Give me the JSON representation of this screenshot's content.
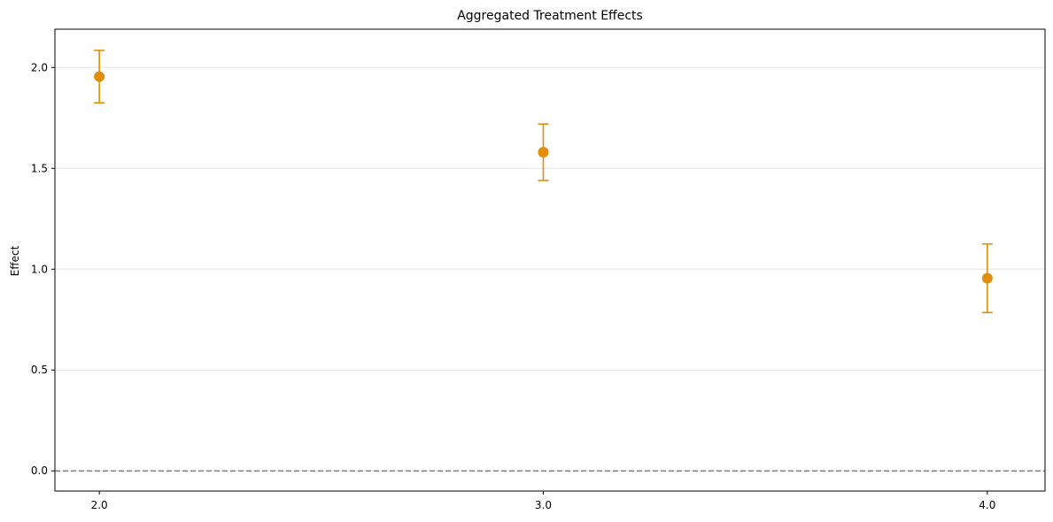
{
  "chart_data": {
    "type": "scatter",
    "title": "Aggregated Treatment Effects",
    "xlabel": "",
    "ylabel": "Effect",
    "x_ticks": [
      "2.0",
      "3.0",
      "4.0"
    ],
    "y_ticks": [
      "0.0",
      "0.5",
      "1.0",
      "1.5",
      "2.0"
    ],
    "xlim": [
      1.9,
      4.13
    ],
    "ylim": [
      -0.1,
      2.19
    ],
    "grid": "y",
    "reference_line": {
      "y": 0.0,
      "style": "dashed",
      "color": "#808080"
    },
    "series": [
      {
        "color": "#E08E0B",
        "points": [
          {
            "x": 2.0,
            "y": 1.955,
            "ci_low": 1.825,
            "ci_high": 2.085
          },
          {
            "x": 3.0,
            "y": 1.58,
            "ci_low": 1.44,
            "ci_high": 1.72
          },
          {
            "x": 4.0,
            "y": 0.955,
            "ci_low": 0.785,
            "ci_high": 1.125
          }
        ]
      }
    ]
  }
}
